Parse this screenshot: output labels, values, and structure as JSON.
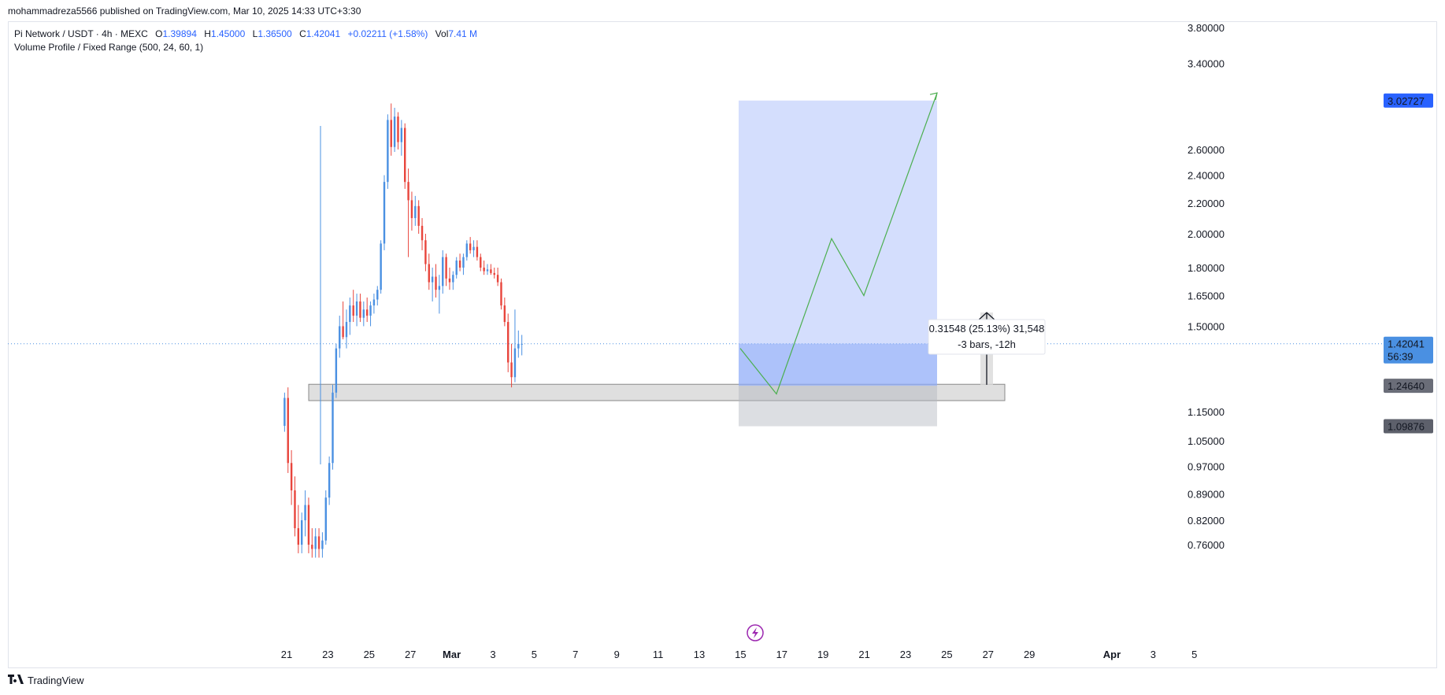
{
  "header": {
    "published": "mohammadreza5566 published on TradingView.com, Mar 10, 2025 14:33 UTC+3:30"
  },
  "legend": {
    "symbol": "Pi Network / USDT · 4h · MEXC",
    "open_label": "O",
    "open": "1.39894",
    "high_label": "H",
    "high": "1.45000",
    "low_label": "L",
    "low": "1.36500",
    "close_label": "C",
    "close": "1.42041",
    "change": "+0.02211 (+1.58%)",
    "vol_label": "Vol",
    "vol": "7.41 M",
    "indicator": "Volume Profile / Fixed Range (500, 24, 60, 1)"
  },
  "footer": {
    "brand": "TradingView"
  },
  "colors": {
    "up": "#4a90e2",
    "down": "#e8453c",
    "target_zone": "#a9bdfb",
    "stop_zone": "#b2b5be",
    "projection": "#4caf50",
    "price_label": "#4a90e2",
    "target_label": "#2962ff",
    "dark_label": "#5d606b"
  },
  "chart_data": {
    "type": "candlestick",
    "interval": "4h",
    "yscale": "log",
    "ylim": [
      0.74,
      4.0
    ],
    "y_ticks": [
      "3.80000",
      "3.40000",
      "2.60000",
      "2.40000",
      "2.20000",
      "2.00000",
      "1.80000",
      "1.65000",
      "1.50000",
      "1.15000",
      "1.05000",
      "0.97000",
      "0.89000",
      "0.82000",
      "0.76000"
    ],
    "x_ticks": [
      "21",
      "23",
      "25",
      "27",
      "Mar",
      "3",
      "5",
      "7",
      "9",
      "11",
      "13",
      "15",
      "17",
      "19",
      "21",
      "23",
      "25",
      "27",
      "29",
      "Apr",
      "3",
      "5"
    ],
    "x_tick_days": [
      20.5,
      22.5,
      24.5,
      26.5,
      28.5,
      30.5,
      32.5,
      34.5,
      36.5,
      38.5,
      40.5,
      42.5,
      44.5,
      46.5,
      48.5,
      50.5,
      52.5,
      54.5,
      56.5,
      60.5,
      62.5,
      64.5
    ],
    "candle_days_start": 20.4,
    "candles": [
      [
        1.1,
        1.22,
        1.08,
        1.2
      ],
      [
        1.2,
        1.24,
        0.95,
        0.98
      ],
      [
        0.98,
        1.02,
        0.86,
        0.9
      ],
      [
        0.9,
        0.94,
        0.78,
        0.8
      ],
      [
        0.8,
        0.86,
        0.74,
        0.76
      ],
      [
        0.76,
        0.84,
        0.74,
        0.82
      ],
      [
        0.82,
        0.9,
        0.78,
        0.86
      ],
      [
        0.86,
        0.88,
        0.74,
        0.76
      ],
      [
        0.76,
        0.8,
        0.73,
        0.75
      ],
      [
        0.75,
        0.8,
        0.73,
        0.78
      ],
      [
        0.78,
        0.8,
        0.73,
        0.75
      ],
      [
        0.75,
        0.79,
        0.73,
        0.77
      ],
      [
        0.77,
        0.9,
        0.76,
        0.88
      ],
      [
        0.88,
        1.0,
        0.86,
        0.98
      ],
      [
        0.98,
        1.25,
        0.96,
        1.22
      ],
      [
        1.22,
        1.42,
        1.2,
        1.4
      ],
      [
        1.4,
        1.55,
        1.36,
        1.5
      ],
      [
        1.5,
        1.62,
        1.44,
        1.45
      ],
      [
        1.45,
        1.58,
        1.4,
        1.52
      ],
      [
        1.52,
        1.64,
        1.46,
        1.6
      ],
      [
        1.6,
        1.68,
        1.52,
        1.55
      ],
      [
        1.55,
        1.66,
        1.5,
        1.62
      ],
      [
        1.62,
        1.66,
        1.52,
        1.54
      ],
      [
        1.54,
        1.62,
        1.5,
        1.58
      ],
      [
        1.58,
        1.64,
        1.52,
        1.55
      ],
      [
        1.55,
        1.62,
        1.5,
        1.6
      ],
      [
        1.6,
        1.66,
        1.56,
        1.63
      ],
      [
        1.63,
        1.7,
        1.6,
        1.68
      ],
      [
        1.68,
        1.96,
        1.66,
        1.94
      ],
      [
        1.94,
        2.4,
        1.9,
        2.35
      ],
      [
        2.35,
        2.9,
        2.3,
        2.85
      ],
      [
        2.85,
        3.0,
        2.55,
        2.62
      ],
      [
        2.62,
        2.96,
        2.58,
        2.88
      ],
      [
        2.88,
        2.92,
        2.6,
        2.66
      ],
      [
        2.66,
        2.85,
        2.55,
        2.78
      ],
      [
        2.78,
        2.82,
        2.3,
        2.35
      ],
      [
        2.35,
        2.45,
        1.86,
        2.22
      ],
      [
        2.22,
        2.28,
        2.02,
        2.1
      ],
      [
        2.1,
        2.25,
        2.05,
        2.18
      ],
      [
        2.18,
        2.22,
        2.0,
        2.05
      ],
      [
        2.05,
        2.1,
        1.9,
        1.96
      ],
      [
        1.96,
        2.0,
        1.78,
        1.82
      ],
      [
        1.82,
        1.88,
        1.68,
        1.72
      ],
      [
        1.72,
        1.8,
        1.62,
        1.75
      ],
      [
        1.75,
        1.82,
        1.64,
        1.68
      ],
      [
        1.68,
        1.76,
        1.56,
        1.7
      ],
      [
        1.7,
        1.9,
        1.66,
        1.86
      ],
      [
        1.86,
        1.88,
        1.7,
        1.74
      ],
      [
        1.74,
        1.8,
        1.68,
        1.72
      ],
      [
        1.72,
        1.78,
        1.68,
        1.76
      ],
      [
        1.76,
        1.86,
        1.74,
        1.84
      ],
      [
        1.84,
        1.88,
        1.78,
        1.8
      ],
      [
        1.8,
        1.88,
        1.76,
        1.86
      ],
      [
        1.86,
        1.96,
        1.84,
        1.94
      ],
      [
        1.94,
        1.98,
        1.88,
        1.9
      ],
      [
        1.9,
        1.96,
        1.86,
        1.92
      ],
      [
        1.92,
        1.96,
        1.84,
        1.86
      ],
      [
        1.86,
        1.88,
        1.78,
        1.8
      ],
      [
        1.8,
        1.84,
        1.76,
        1.78
      ],
      [
        1.78,
        1.82,
        1.76,
        1.79
      ],
      [
        1.79,
        1.82,
        1.76,
        1.77
      ],
      [
        1.77,
        1.8,
        1.74,
        1.76
      ],
      [
        1.76,
        1.8,
        1.7,
        1.72
      ],
      [
        1.72,
        1.74,
        1.58,
        1.6
      ],
      [
        1.6,
        1.64,
        1.5,
        1.52
      ],
      [
        1.52,
        1.56,
        1.3,
        1.34
      ],
      [
        1.34,
        1.42,
        1.24,
        1.28
      ],
      [
        1.28,
        1.58,
        1.26,
        1.4
      ],
      [
        1.4,
        1.48,
        1.36,
        1.42
      ],
      [
        1.42,
        1.46,
        1.37,
        1.42
      ]
    ],
    "drawings": {
      "target_price": "3.02727",
      "current_price": "1.42041",
      "countdown": "56:39",
      "support_price": "1.24640",
      "stop_price": "1.09876",
      "measure_line1": "0.31548 (25.13%) 31,548",
      "measure_line2": "-3 bars, -12h"
    }
  }
}
